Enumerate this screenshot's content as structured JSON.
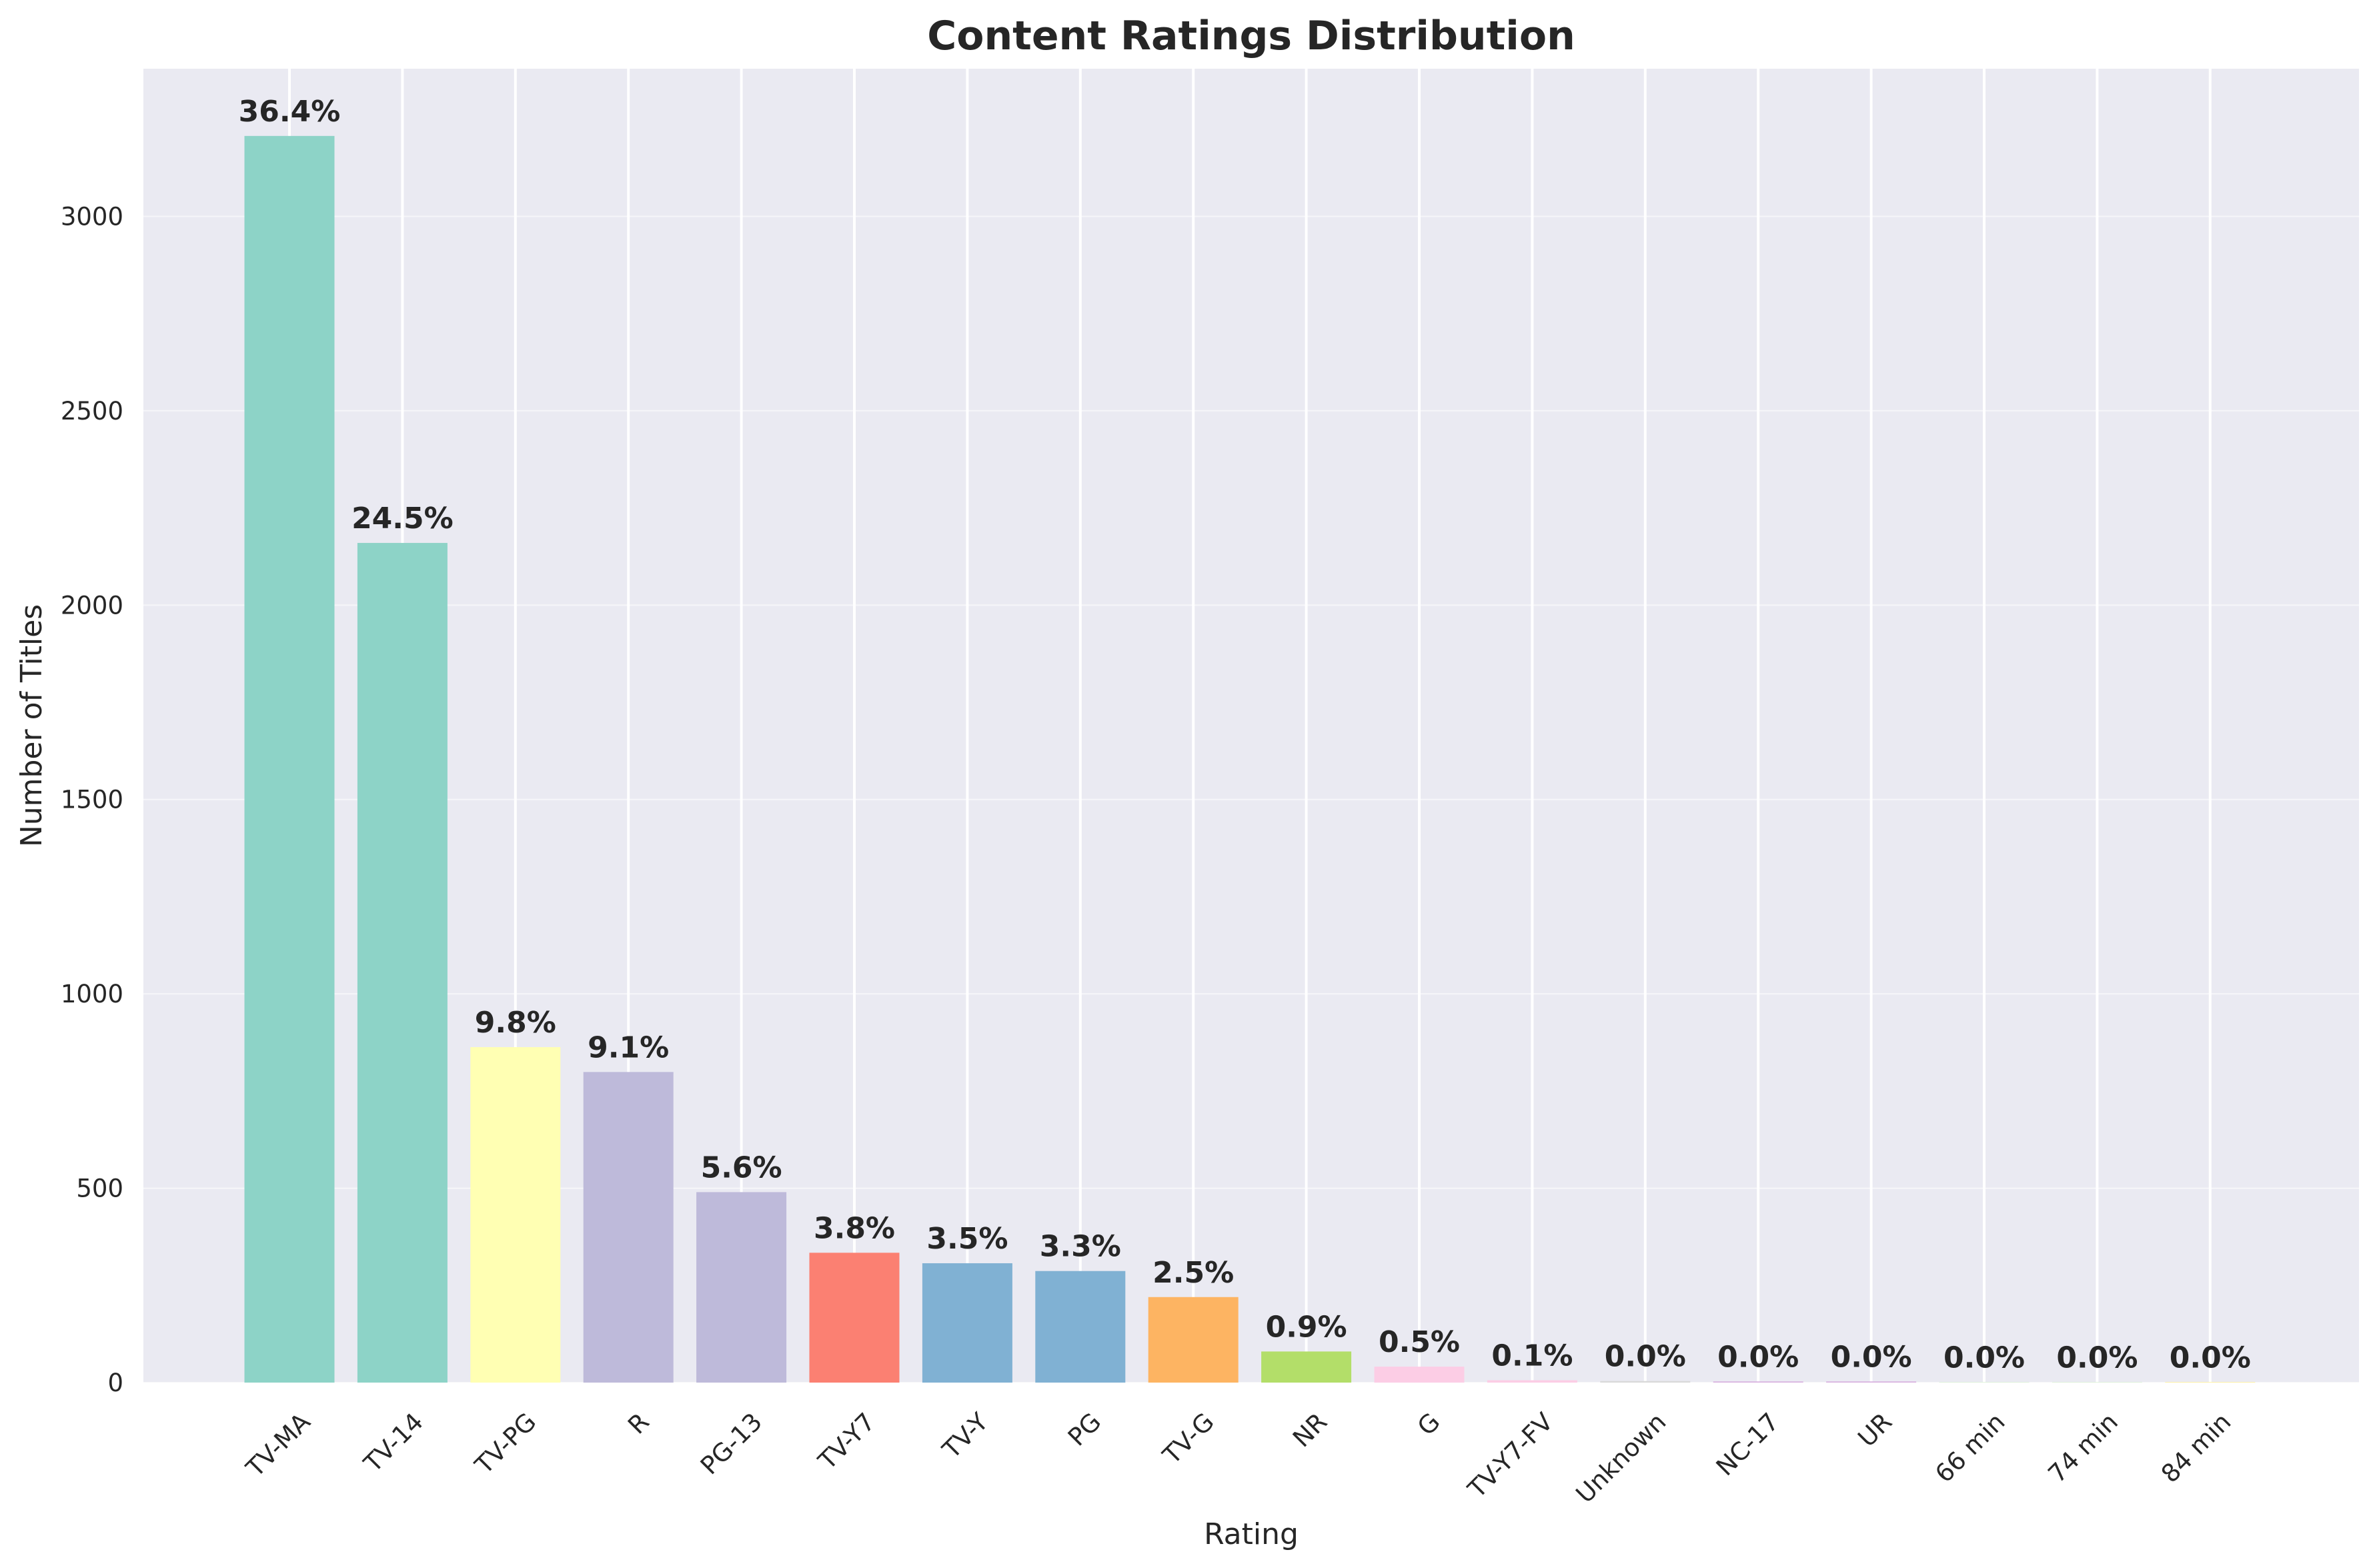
{
  "chart_data": {
    "type": "bar",
    "title": "Content Ratings Distribution",
    "xlabel": "Rating",
    "ylabel": "Number of Titles",
    "ylim": [
      0,
      3380
    ],
    "yticks": [
      0,
      500,
      1000,
      1500,
      2000,
      2500,
      3000
    ],
    "ytick_labels": [
      "0",
      "500",
      "1000",
      "1500",
      "2000",
      "2500",
      "3000"
    ],
    "grid": true,
    "categories": [
      "TV-MA",
      "TV-14",
      "TV-PG",
      "R",
      "PG-13",
      "TV-Y7",
      "TV-Y",
      "PG",
      "TV-G",
      "NR",
      "G",
      "TV-Y7-FV",
      "Unknown",
      "NC-17",
      "UR",
      "66 min",
      "74 min",
      "84 min"
    ],
    "values": [
      3207,
      2160,
      863,
      799,
      490,
      334,
      307,
      287,
      220,
      80,
      41,
      6,
      4,
      3,
      3,
      1,
      1,
      1
    ],
    "data_labels": [
      "36.4%",
      "24.5%",
      "9.8%",
      "9.1%",
      "5.6%",
      "3.8%",
      "3.5%",
      "3.3%",
      "2.5%",
      "0.9%",
      "0.5%",
      "0.1%",
      "0.0%",
      "0.0%",
      "0.0%",
      "0.0%",
      "0.0%",
      "0.0%"
    ],
    "colors": [
      "#8dd3c7",
      "#8dd3c7",
      "#ffffb3",
      "#bebada",
      "#bebada",
      "#fb8072",
      "#80b1d3",
      "#80b1d3",
      "#fdb462",
      "#b3de69",
      "#fccde5",
      "#fccde5",
      "#d9d9d9",
      "#d9b3e0",
      "#d9b3e0",
      "#ccebc5",
      "#ccebc5",
      "#ffed6f"
    ],
    "background_color": "#eaeaf2",
    "grid_color": "#ffffff"
  }
}
